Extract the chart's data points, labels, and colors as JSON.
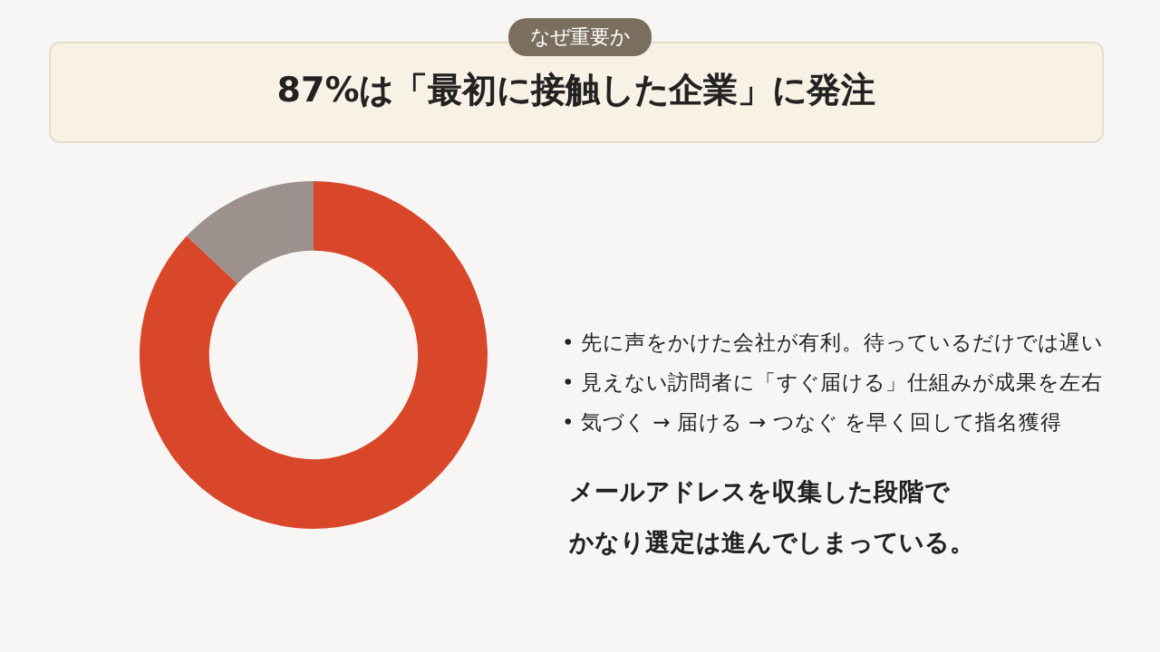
{
  "chart_data": {
    "type": "donut",
    "subtitle": "なぜ重要か",
    "title": "87%は「最初に接触した企業」に発注",
    "categories": [
      null,
      null
    ],
    "values": [
      87,
      13
    ],
    "colors": [
      "#d9472b",
      "#9c918c"
    ],
    "annotations": [
      "• 先に声をかけた会社が有利。待っているだけでは遅い",
      "• 見えない訪問者に「すぐ届ける」仕組みが成果を左右",
      "• 気づく → 届ける → つなぐ を早く回して指名獲得",
      "メールアドレスを収集した段階で",
      "かなり選定は進んでしまっている。"
    ],
    "legend": false
  }
}
